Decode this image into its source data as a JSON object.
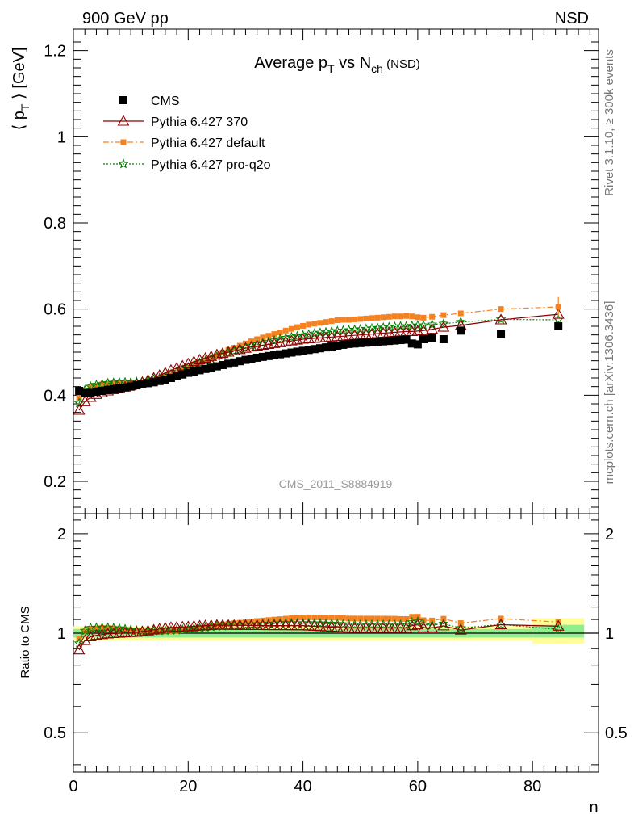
{
  "header": {
    "left": "900 GeV pp",
    "right": "NSD"
  },
  "side_labels": {
    "top": "Rivet 3.1.10, ≥ 300k events",
    "bottom": "mcplots.cern.ch [arXiv:1306.3436]"
  },
  "chart_data": [
    {
      "type": "scatter",
      "title_parts": {
        "main": "Average p",
        "sub1": "T",
        "mid": " vs N",
        "sub2": "ch",
        "tail": " (NSD)"
      },
      "ylabel_parts": {
        "open": "⟨ p",
        "sub": "T",
        "close": " ⟩ [GeV]"
      },
      "xlabel": "n",
      "watermark": "CMS_2011_S8884919",
      "xlim": [
        0,
        91.5
      ],
      "ylim": [
        0.125,
        1.25
      ],
      "xticks": [
        0,
        20,
        40,
        60,
        80
      ],
      "yticks": [
        0.2,
        0.4,
        0.6,
        0.8,
        1.0,
        1.2
      ],
      "ytick_labels": [
        "0.2",
        "0.4",
        "0.6",
        "0.8",
        "1",
        "1.2"
      ],
      "legend_position": "top-left",
      "series": [
        {
          "name": "CMS",
          "color": "#000000",
          "marker": "square",
          "x": [
            1,
            2,
            3,
            4,
            5,
            6,
            7,
            8,
            9,
            10,
            11,
            12,
            13,
            14,
            15,
            16,
            17,
            18,
            19,
            20,
            21,
            22,
            23,
            24,
            25,
            26,
            27,
            28,
            29,
            30,
            31,
            32,
            33,
            34,
            35,
            36,
            37,
            38,
            39,
            40,
            41,
            42,
            43,
            44,
            45,
            46,
            47,
            48,
            49,
            50,
            51,
            52,
            53,
            54,
            55,
            56,
            57,
            58,
            59,
            60,
            61,
            62.5,
            64.5,
            67.5,
            74.5,
            84.5
          ],
          "y": [
            0.41,
            0.405,
            0.405,
            0.408,
            0.41,
            0.412,
            0.414,
            0.416,
            0.418,
            0.42,
            0.423,
            0.425,
            0.428,
            0.43,
            0.433,
            0.436,
            0.44,
            0.444,
            0.448,
            0.452,
            0.455,
            0.458,
            0.461,
            0.464,
            0.467,
            0.47,
            0.473,
            0.476,
            0.479,
            0.482,
            0.485,
            0.487,
            0.489,
            0.491,
            0.493,
            0.495,
            0.497,
            0.499,
            0.501,
            0.503,
            0.505,
            0.507,
            0.509,
            0.511,
            0.513,
            0.515,
            0.517,
            0.519,
            0.52,
            0.521,
            0.522,
            0.523,
            0.524,
            0.525,
            0.526,
            0.527,
            0.528,
            0.529,
            0.52,
            0.518,
            0.53,
            0.533,
            0.53,
            0.55,
            0.542,
            0.56
          ]
        },
        {
          "name": "Pythia 6.427 370",
          "color": "#8b0000",
          "marker": "triangle",
          "x": [
            1,
            2,
            3,
            4,
            5,
            6,
            7,
            8,
            9,
            10,
            11,
            12,
            13,
            14,
            15,
            16,
            17,
            18,
            19,
            20,
            21,
            22,
            23,
            24,
            25,
            26,
            27,
            28,
            29,
            30,
            31,
            32,
            33,
            34,
            35,
            36,
            37,
            38,
            39,
            40,
            41,
            42,
            43,
            44,
            45,
            46,
            47,
            48,
            49,
            50,
            51,
            52,
            53,
            54,
            55,
            56,
            57,
            58,
            59,
            60,
            61,
            62.5,
            64.5,
            67.5,
            74.5,
            84.5
          ],
          "y": [
            0.365,
            0.385,
            0.395,
            0.402,
            0.406,
            0.41,
            0.413,
            0.416,
            0.419,
            0.422,
            0.426,
            0.43,
            0.435,
            0.44,
            0.446,
            0.452,
            0.458,
            0.463,
            0.468,
            0.473,
            0.478,
            0.482,
            0.486,
            0.49,
            0.494,
            0.497,
            0.5,
            0.503,
            0.506,
            0.509,
            0.512,
            0.514,
            0.516,
            0.518,
            0.52,
            0.522,
            0.524,
            0.526,
            0.528,
            0.53,
            0.531,
            0.532,
            0.533,
            0.534,
            0.535,
            0.536,
            0.537,
            0.538,
            0.539,
            0.54,
            0.541,
            0.542,
            0.543,
            0.544,
            0.545,
            0.546,
            0.547,
            0.548,
            0.548,
            0.549,
            0.55,
            0.553,
            0.558,
            0.562,
            0.575,
            0.588
          ]
        },
        {
          "name": "Pythia 6.427 default",
          "color": "#f58220",
          "marker": "square-small",
          "x": [
            1,
            2,
            3,
            4,
            5,
            6,
            7,
            8,
            9,
            10,
            11,
            12,
            13,
            14,
            15,
            16,
            17,
            18,
            19,
            20,
            21,
            22,
            23,
            24,
            25,
            26,
            27,
            28,
            29,
            30,
            31,
            32,
            33,
            34,
            35,
            36,
            37,
            38,
            39,
            40,
            41,
            42,
            43,
            44,
            45,
            46,
            47,
            48,
            49,
            50,
            51,
            52,
            53,
            54,
            55,
            56,
            57,
            58,
            59,
            60,
            61,
            62.5,
            64.5,
            67.5,
            74.5,
            84.5
          ],
          "y": [
            0.395,
            0.41,
            0.418,
            0.422,
            0.425,
            0.427,
            0.428,
            0.428,
            0.428,
            0.428,
            0.429,
            0.43,
            0.432,
            0.434,
            0.437,
            0.441,
            0.446,
            0.451,
            0.457,
            0.463,
            0.469,
            0.475,
            0.481,
            0.487,
            0.493,
            0.499,
            0.505,
            0.51,
            0.515,
            0.52,
            0.525,
            0.53,
            0.534,
            0.538,
            0.542,
            0.546,
            0.55,
            0.554,
            0.558,
            0.561,
            0.564,
            0.566,
            0.568,
            0.57,
            0.572,
            0.574,
            0.575,
            0.575,
            0.576,
            0.577,
            0.578,
            0.579,
            0.58,
            0.581,
            0.582,
            0.583,
            0.583,
            0.584,
            0.583,
            0.581,
            0.58,
            0.582,
            0.586,
            0.59,
            0.6,
            0.605
          ]
        },
        {
          "name": "Pythia 6.427 pro-q2o",
          "color": "#008000",
          "marker": "star",
          "x": [
            1,
            2,
            3,
            4,
            5,
            6,
            7,
            8,
            9,
            10,
            11,
            12,
            13,
            14,
            15,
            16,
            17,
            18,
            19,
            20,
            21,
            22,
            23,
            24,
            25,
            26,
            27,
            28,
            29,
            30,
            31,
            32,
            33,
            34,
            35,
            36,
            37,
            38,
            39,
            40,
            41,
            42,
            43,
            44,
            45,
            46,
            47,
            48,
            49,
            50,
            51,
            52,
            53,
            54,
            55,
            56,
            57,
            58,
            59,
            60,
            61,
            62.5,
            64.5,
            67.5,
            74.5,
            84.5
          ],
          "y": [
            0.382,
            0.412,
            0.42,
            0.424,
            0.426,
            0.428,
            0.429,
            0.43,
            0.43,
            0.43,
            0.431,
            0.432,
            0.434,
            0.437,
            0.44,
            0.444,
            0.449,
            0.454,
            0.459,
            0.465,
            0.47,
            0.475,
            0.48,
            0.485,
            0.49,
            0.494,
            0.498,
            0.502,
            0.506,
            0.51,
            0.514,
            0.518,
            0.521,
            0.524,
            0.527,
            0.53,
            0.533,
            0.535,
            0.537,
            0.539,
            0.541,
            0.543,
            0.545,
            0.546,
            0.548,
            0.549,
            0.55,
            0.551,
            0.552,
            0.553,
            0.554,
            0.555,
            0.556,
            0.557,
            0.558,
            0.559,
            0.56,
            0.56,
            0.561,
            0.562,
            0.562,
            0.564,
            0.566,
            0.57,
            0.576,
            0.575
          ]
        }
      ]
    },
    {
      "type": "scatter",
      "ylabel": "Ratio to CMS",
      "xlabel": "n",
      "scale": "log",
      "xlim": [
        0,
        91.5
      ],
      "ylim": [
        0.38,
        2.3
      ],
      "xticks": [
        0,
        20,
        40,
        60,
        80
      ],
      "xtick_labels": [
        "0",
        "20",
        "40",
        "60",
        "80"
      ],
      "yticks": [
        0.5,
        1,
        2
      ],
      "ytick_labels": [
        "0.5",
        "1",
        "2"
      ],
      "band_inner_color": "#90ee90",
      "band_outer_color": "#ffff99",
      "bands": [
        {
          "x0": 0,
          "x1": 80,
          "inner": [
            0.97,
            1.03
          ],
          "outer": [
            0.95,
            1.05
          ]
        },
        {
          "x0": 80,
          "x1": 89,
          "inner": [
            0.97,
            1.06
          ],
          "outer": [
            0.93,
            1.11
          ]
        }
      ],
      "reference_line": 1
    }
  ]
}
